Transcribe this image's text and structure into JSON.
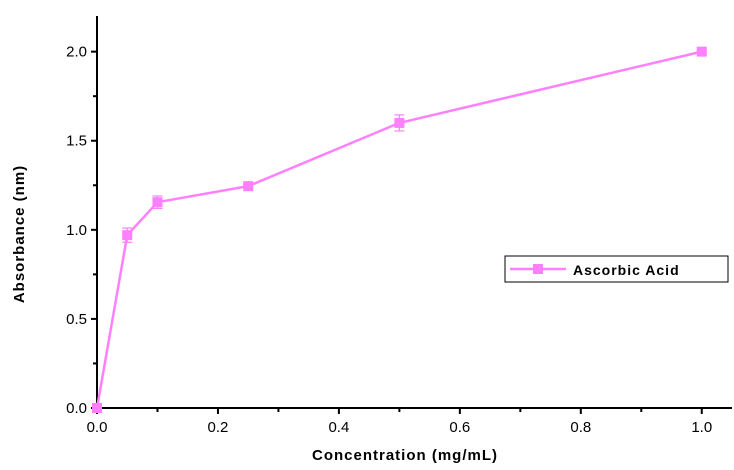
{
  "chart_data": {
    "type": "line",
    "xlabel": "Concentration (mg/mL)",
    "ylabel": "Absorbance (nm)",
    "xlim": [
      0.0,
      1.05
    ],
    "ylim": [
      0.0,
      2.2
    ],
    "x_ticks": [
      "0.0",
      "0.2",
      "0.4",
      "0.6",
      "0.8",
      "1.0"
    ],
    "y_ticks": [
      "0.0",
      "0.5",
      "1.0",
      "1.5",
      "2.0"
    ],
    "legend_position": "right",
    "grid": false,
    "series": [
      {
        "name": "Ascorbic Acid",
        "color": "#ff80ff",
        "marker": "square",
        "x": [
          0.0,
          0.05,
          0.1,
          0.25,
          0.5,
          1.0
        ],
        "y": [
          0.0,
          0.97,
          1.155,
          1.245,
          1.6,
          2.0
        ],
        "error": [
          0.0,
          0.04,
          0.035,
          0.01,
          0.045,
          0.01
        ]
      }
    ]
  }
}
